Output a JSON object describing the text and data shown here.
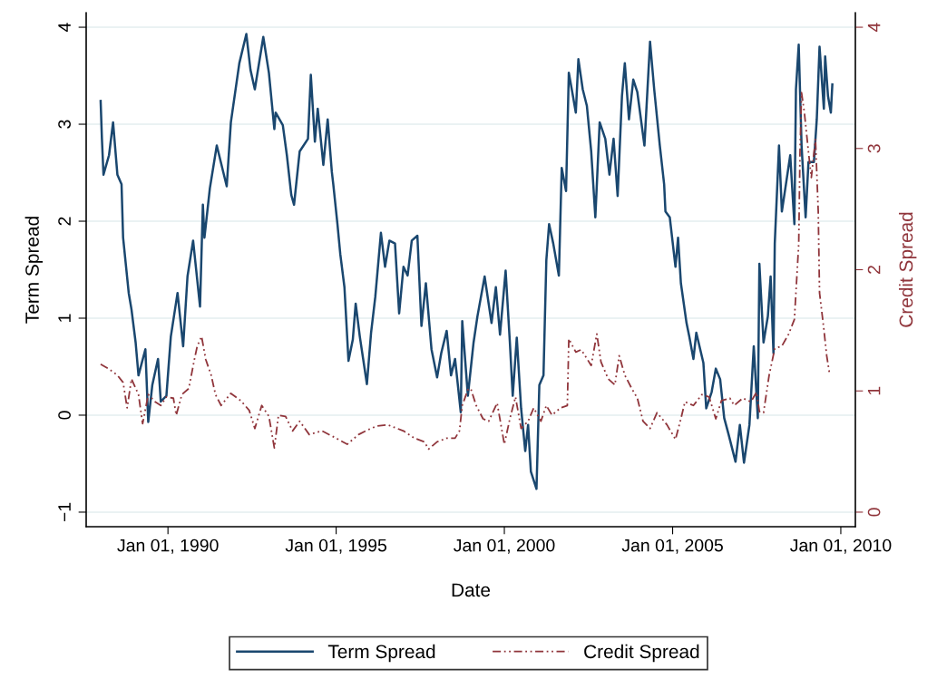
{
  "chart_data": {
    "type": "line",
    "xlabel": "Date",
    "ylabel": "Term Spread",
    "y2label": "Credit Spread",
    "xlim": [
      "1987-07-28",
      "2010-06-08"
    ],
    "xticks": [
      {
        "value": "1990-01-01",
        "label": "Jan 01, 1990"
      },
      {
        "value": "1995-01-01",
        "label": "Jan 01, 1995"
      },
      {
        "value": "2000-01-01",
        "label": "Jan 01, 2000"
      },
      {
        "value": "2005-01-01",
        "label": "Jan 01, 2005"
      },
      {
        "value": "2010-01-01",
        "label": "Jan 01, 2010"
      }
    ],
    "ylim": [
      -1.15,
      4.15
    ],
    "yticks": [
      {
        "value": -1,
        "label": "−1"
      },
      0,
      1,
      2,
      3,
      4
    ],
    "y2lim": [
      -0.12,
      4.12
    ],
    "y2ticks": [
      0,
      1,
      2,
      3,
      4
    ],
    "grid": "y",
    "legend": "bottom",
    "series": [
      {
        "name": "Term Spread",
        "color": "#1a476f",
        "line_style": "solid",
        "x": [
          "1988-01-01",
          "1988-01-15",
          "1988-02-01",
          "1988-04-01",
          "1988-05-15",
          "1988-07-01",
          "1988-08-15",
          "1988-09-01",
          "1988-11-01",
          "1988-12-01",
          "1989-01-15",
          "1989-02-15",
          "1989-05-01",
          "1989-06-01",
          "1989-07-15",
          "1989-09-15",
          "1989-10-15",
          "1989-12-15",
          "1990-02-01",
          "1990-04-15",
          "1990-06-15",
          "1990-08-01",
          "1990-10-01",
          "1990-12-15",
          "1991-01-15",
          "1991-02-01",
          "1991-04-01",
          "1991-06-15",
          "1991-10-01",
          "1991-11-15",
          "1992-02-15",
          "1992-05-01",
          "1992-06-15",
          "1992-08-01",
          "1992-11-01",
          "1993-01-01",
          "1993-03-01",
          "1993-03-15",
          "1993-06-01",
          "1993-07-15",
          "1993-09-01",
          "1993-10-01",
          "1993-12-01",
          "1994-03-01",
          "1994-04-01",
          "1994-05-15",
          "1994-06-15",
          "1994-08-15",
          "1994-10-01",
          "1994-11-15",
          "1994-12-01",
          "1995-01-15",
          "1995-02-15",
          "1995-04-01",
          "1995-05-15",
          "1995-07-01",
          "1995-08-01",
          "1995-09-15",
          "1995-12-01",
          "1996-01-15",
          "1996-03-01",
          "1996-05-01",
          "1996-06-15",
          "1996-08-01",
          "1996-10-01",
          "1996-11-15",
          "1997-01-01",
          "1997-02-15",
          "1997-04-01",
          "1997-06-01",
          "1997-07-15",
          "1997-09-01",
          "1997-11-01",
          "1998-01-01",
          "1998-02-15",
          "1998-04-15",
          "1998-06-01",
          "1998-07-15",
          "1998-09-15",
          "1998-10-01",
          "1998-12-01",
          "1999-02-01",
          "1999-03-15",
          "1999-06-01",
          "1999-08-15",
          "1999-10-01",
          "1999-11-15",
          "2000-01-15",
          "2000-03-01",
          "2000-04-01",
          "2000-05-15",
          "2000-07-01",
          "2000-08-15",
          "2000-09-15",
          "2000-10-15",
          "2000-12-15",
          "2001-01-15",
          "2001-03-01",
          "2001-04-01",
          "2001-05-01",
          "2001-06-15",
          "2001-08-15",
          "2001-09-15",
          "2001-11-01",
          "2001-12-01",
          "2002-01-15",
          "2002-02-15",
          "2002-03-15",
          "2002-05-01",
          "2002-06-15",
          "2002-08-01",
          "2002-09-15",
          "2002-11-01",
          "2003-01-01",
          "2003-02-15",
          "2003-04-01",
          "2003-05-15",
          "2003-07-01",
          "2003-08-01",
          "2003-09-15",
          "2003-11-01",
          "2003-12-15",
          "2004-03-01",
          "2004-05-01",
          "2004-06-15",
          "2004-08-15",
          "2004-10-01",
          "2004-10-15",
          "2004-12-01",
          "2005-02-01",
          "2005-03-01",
          "2005-04-01",
          "2005-06-01",
          "2005-07-01",
          "2005-08-15",
          "2005-09-15",
          "2005-12-01",
          "2006-01-01",
          "2006-03-01",
          "2006-04-15",
          "2006-06-01",
          "2006-07-15",
          "2006-09-01",
          "2006-11-15",
          "2007-01-01",
          "2007-02-15",
          "2007-04-15",
          "2007-06-01",
          "2007-07-15",
          "2007-08-01",
          "2007-09-15",
          "2007-11-01",
          "2007-12-01",
          "2008-01-01",
          "2008-01-15",
          "2008-03-01",
          "2008-04-01",
          "2008-05-15",
          "2008-07-01",
          "2008-08-15",
          "2008-09-01",
          "2008-10-01",
          "2008-11-01",
          "2008-12-15",
          "2009-01-15",
          "2009-03-15",
          "2009-04-15",
          "2009-05-15",
          "2009-07-01",
          "2009-07-15",
          "2009-08-15",
          "2009-09-15",
          "2009-10-01"
        ],
        "values": [
          3.24,
          2.85,
          2.48,
          2.68,
          3.02,
          2.48,
          2.38,
          1.83,
          1.26,
          1.09,
          0.75,
          0.41,
          0.68,
          -0.07,
          0.31,
          0.58,
          0.14,
          0.2,
          0.81,
          1.26,
          0.71,
          1.43,
          1.8,
          1.12,
          2.17,
          1.83,
          2.34,
          2.78,
          2.36,
          3.02,
          3.63,
          3.93,
          3.56,
          3.36,
          3.9,
          3.53,
          2.95,
          3.12,
          2.99,
          2.68,
          2.27,
          2.17,
          2.72,
          2.85,
          3.51,
          2.82,
          3.16,
          2.58,
          3.05,
          2.51,
          2.38,
          1.97,
          1.66,
          1.32,
          0.56,
          0.78,
          1.15,
          0.81,
          0.32,
          0.85,
          1.22,
          1.88,
          1.53,
          1.8,
          1.77,
          1.05,
          1.53,
          1.44,
          1.8,
          1.85,
          0.92,
          1.36,
          0.68,
          0.39,
          0.64,
          0.87,
          0.41,
          0.58,
          0.03,
          0.97,
          0.2,
          0.75,
          1.02,
          1.43,
          0.95,
          1.32,
          0.83,
          1.49,
          0.75,
          0.2,
          0.8,
          0.07,
          -0.37,
          -0.1,
          -0.58,
          -0.76,
          0.31,
          0.41,
          1.6,
          1.97,
          1.77,
          1.44,
          2.55,
          2.31,
          3.53,
          3.29,
          3.12,
          3.67,
          3.36,
          3.19,
          2.72,
          2.04,
          3.02,
          2.85,
          2.48,
          2.85,
          2.26,
          3.29,
          3.63,
          3.05,
          3.46,
          3.33,
          2.78,
          3.85,
          3.36,
          2.78,
          2.38,
          2.1,
          2.04,
          1.53,
          1.83,
          1.36,
          0.95,
          0.81,
          0.58,
          0.85,
          0.54,
          0.07,
          0.24,
          0.48,
          0.37,
          -0.03,
          -0.2,
          -0.48,
          -0.1,
          -0.49,
          -0.1,
          0.71,
          -0.03,
          1.56,
          0.75,
          1.02,
          1.43,
          0.64,
          1.77,
          2.78,
          2.1,
          2.38,
          2.68,
          1.97,
          3.36,
          3.82,
          2.78,
          2.04,
          2.61,
          2.61,
          3.05,
          3.8,
          3.16,
          3.7,
          3.29,
          3.12,
          3.41
        ]
      },
      {
        "name": "Credit Spread",
        "color": "#90353b",
        "line_style": "dashed",
        "axis": "y2",
        "x": [
          "1988-01-01",
          "1988-04-01",
          "1988-07-01",
          "1988-09-01",
          "1988-10-15",
          "1988-12-01",
          "1989-02-15",
          "1989-04-01",
          "1989-06-01",
          "1989-08-15",
          "1989-10-15",
          "1989-12-15",
          "1990-03-01",
          "1990-04-01",
          "1990-06-01",
          "1990-08-15",
          "1990-10-15",
          "1990-11-15",
          "1991-01-01",
          "1991-02-15",
          "1991-04-15",
          "1991-06-01",
          "1991-08-01",
          "1991-11-15",
          "1992-03-01",
          "1992-06-01",
          "1992-08-01",
          "1992-10-15",
          "1993-01-01",
          "1993-03-01",
          "1993-04-15",
          "1993-07-01",
          "1993-09-15",
          "1993-12-01",
          "1994-03-15",
          "1994-08-01",
          "1995-01-01",
          "1995-05-01",
          "1995-09-01",
          "1995-12-15",
          "1996-03-15",
          "1996-07-15",
          "1997-01-01",
          "1997-05-01",
          "1997-08-15",
          "1997-10-01",
          "1998-01-01",
          "1998-04-15",
          "1998-07-15",
          "1998-09-01",
          "1998-10-01",
          "1998-12-01",
          "1999-01-01",
          "1999-03-01",
          "1999-05-15",
          "1999-07-15",
          "1999-10-15",
          "2000-01-01",
          "2000-03-01",
          "2000-05-01",
          "2000-07-01",
          "2000-09-15",
          "2000-11-15",
          "2001-02-01",
          "2001-04-01",
          "2001-06-01",
          "2001-09-01",
          "2001-11-15",
          "2001-12-01",
          "2002-02-15",
          "2002-04-15",
          "2002-08-01",
          "2002-10-01",
          "2002-11-15",
          "2003-02-01",
          "2003-04-15",
          "2003-06-01",
          "2003-08-01",
          "2003-10-15",
          "2003-12-15",
          "2004-02-15",
          "2004-05-01",
          "2004-07-15",
          "2004-10-01",
          "2004-11-01",
          "2005-02-01",
          "2005-04-01",
          "2005-05-15",
          "2005-08-15",
          "2005-11-15",
          "2006-02-01",
          "2006-04-15",
          "2006-06-15",
          "2006-09-15",
          "2006-11-01",
          "2007-02-01",
          "2007-05-01",
          "2007-07-01",
          "2007-08-01",
          "2007-09-15",
          "2007-11-15",
          "2008-01-15",
          "2008-04-01",
          "2008-06-15",
          "2008-08-15",
          "2008-10-01",
          "2008-10-15",
          "2008-11-01",
          "2008-12-01",
          "2009-01-15",
          "2009-02-15",
          "2009-04-01",
          "2009-05-01",
          "2009-05-15",
          "2009-07-01",
          "2009-08-01",
          "2009-09-01"
        ],
        "values": [
          1.22,
          1.18,
          1.13,
          1.07,
          0.86,
          1.1,
          0.97,
          0.73,
          0.97,
          0.91,
          0.88,
          0.95,
          0.94,
          0.8,
          0.97,
          1.02,
          1.26,
          1.37,
          1.45,
          1.26,
          1.13,
          0.97,
          0.88,
          0.98,
          0.92,
          0.84,
          0.69,
          0.88,
          0.79,
          0.53,
          0.8,
          0.79,
          0.67,
          0.75,
          0.64,
          0.67,
          0.61,
          0.56,
          0.64,
          0.68,
          0.71,
          0.72,
          0.67,
          0.61,
          0.58,
          0.52,
          0.58,
          0.61,
          0.61,
          0.67,
          0.88,
          1.01,
          1.02,
          0.88,
          0.77,
          0.75,
          0.9,
          0.56,
          0.77,
          0.95,
          0.69,
          0.75,
          0.86,
          0.75,
          0.88,
          0.8,
          0.86,
          0.88,
          1.43,
          1.32,
          1.34,
          1.21,
          1.47,
          1.24,
          1.1,
          1.05,
          1.29,
          1.13,
          1.02,
          0.94,
          0.75,
          0.69,
          0.82,
          0.75,
          0.72,
          0.6,
          0.77,
          0.91,
          0.88,
          0.97,
          0.95,
          0.77,
          0.92,
          0.94,
          0.88,
          0.94,
          0.91,
          0.99,
          0.83,
          0.82,
          1.13,
          1.35,
          1.37,
          1.47,
          1.59,
          2.21,
          2.97,
          3.46,
          3.3,
          2.97,
          2.76,
          3.08,
          2.48,
          1.81,
          1.51,
          1.29,
          1.14
        ]
      }
    ]
  }
}
